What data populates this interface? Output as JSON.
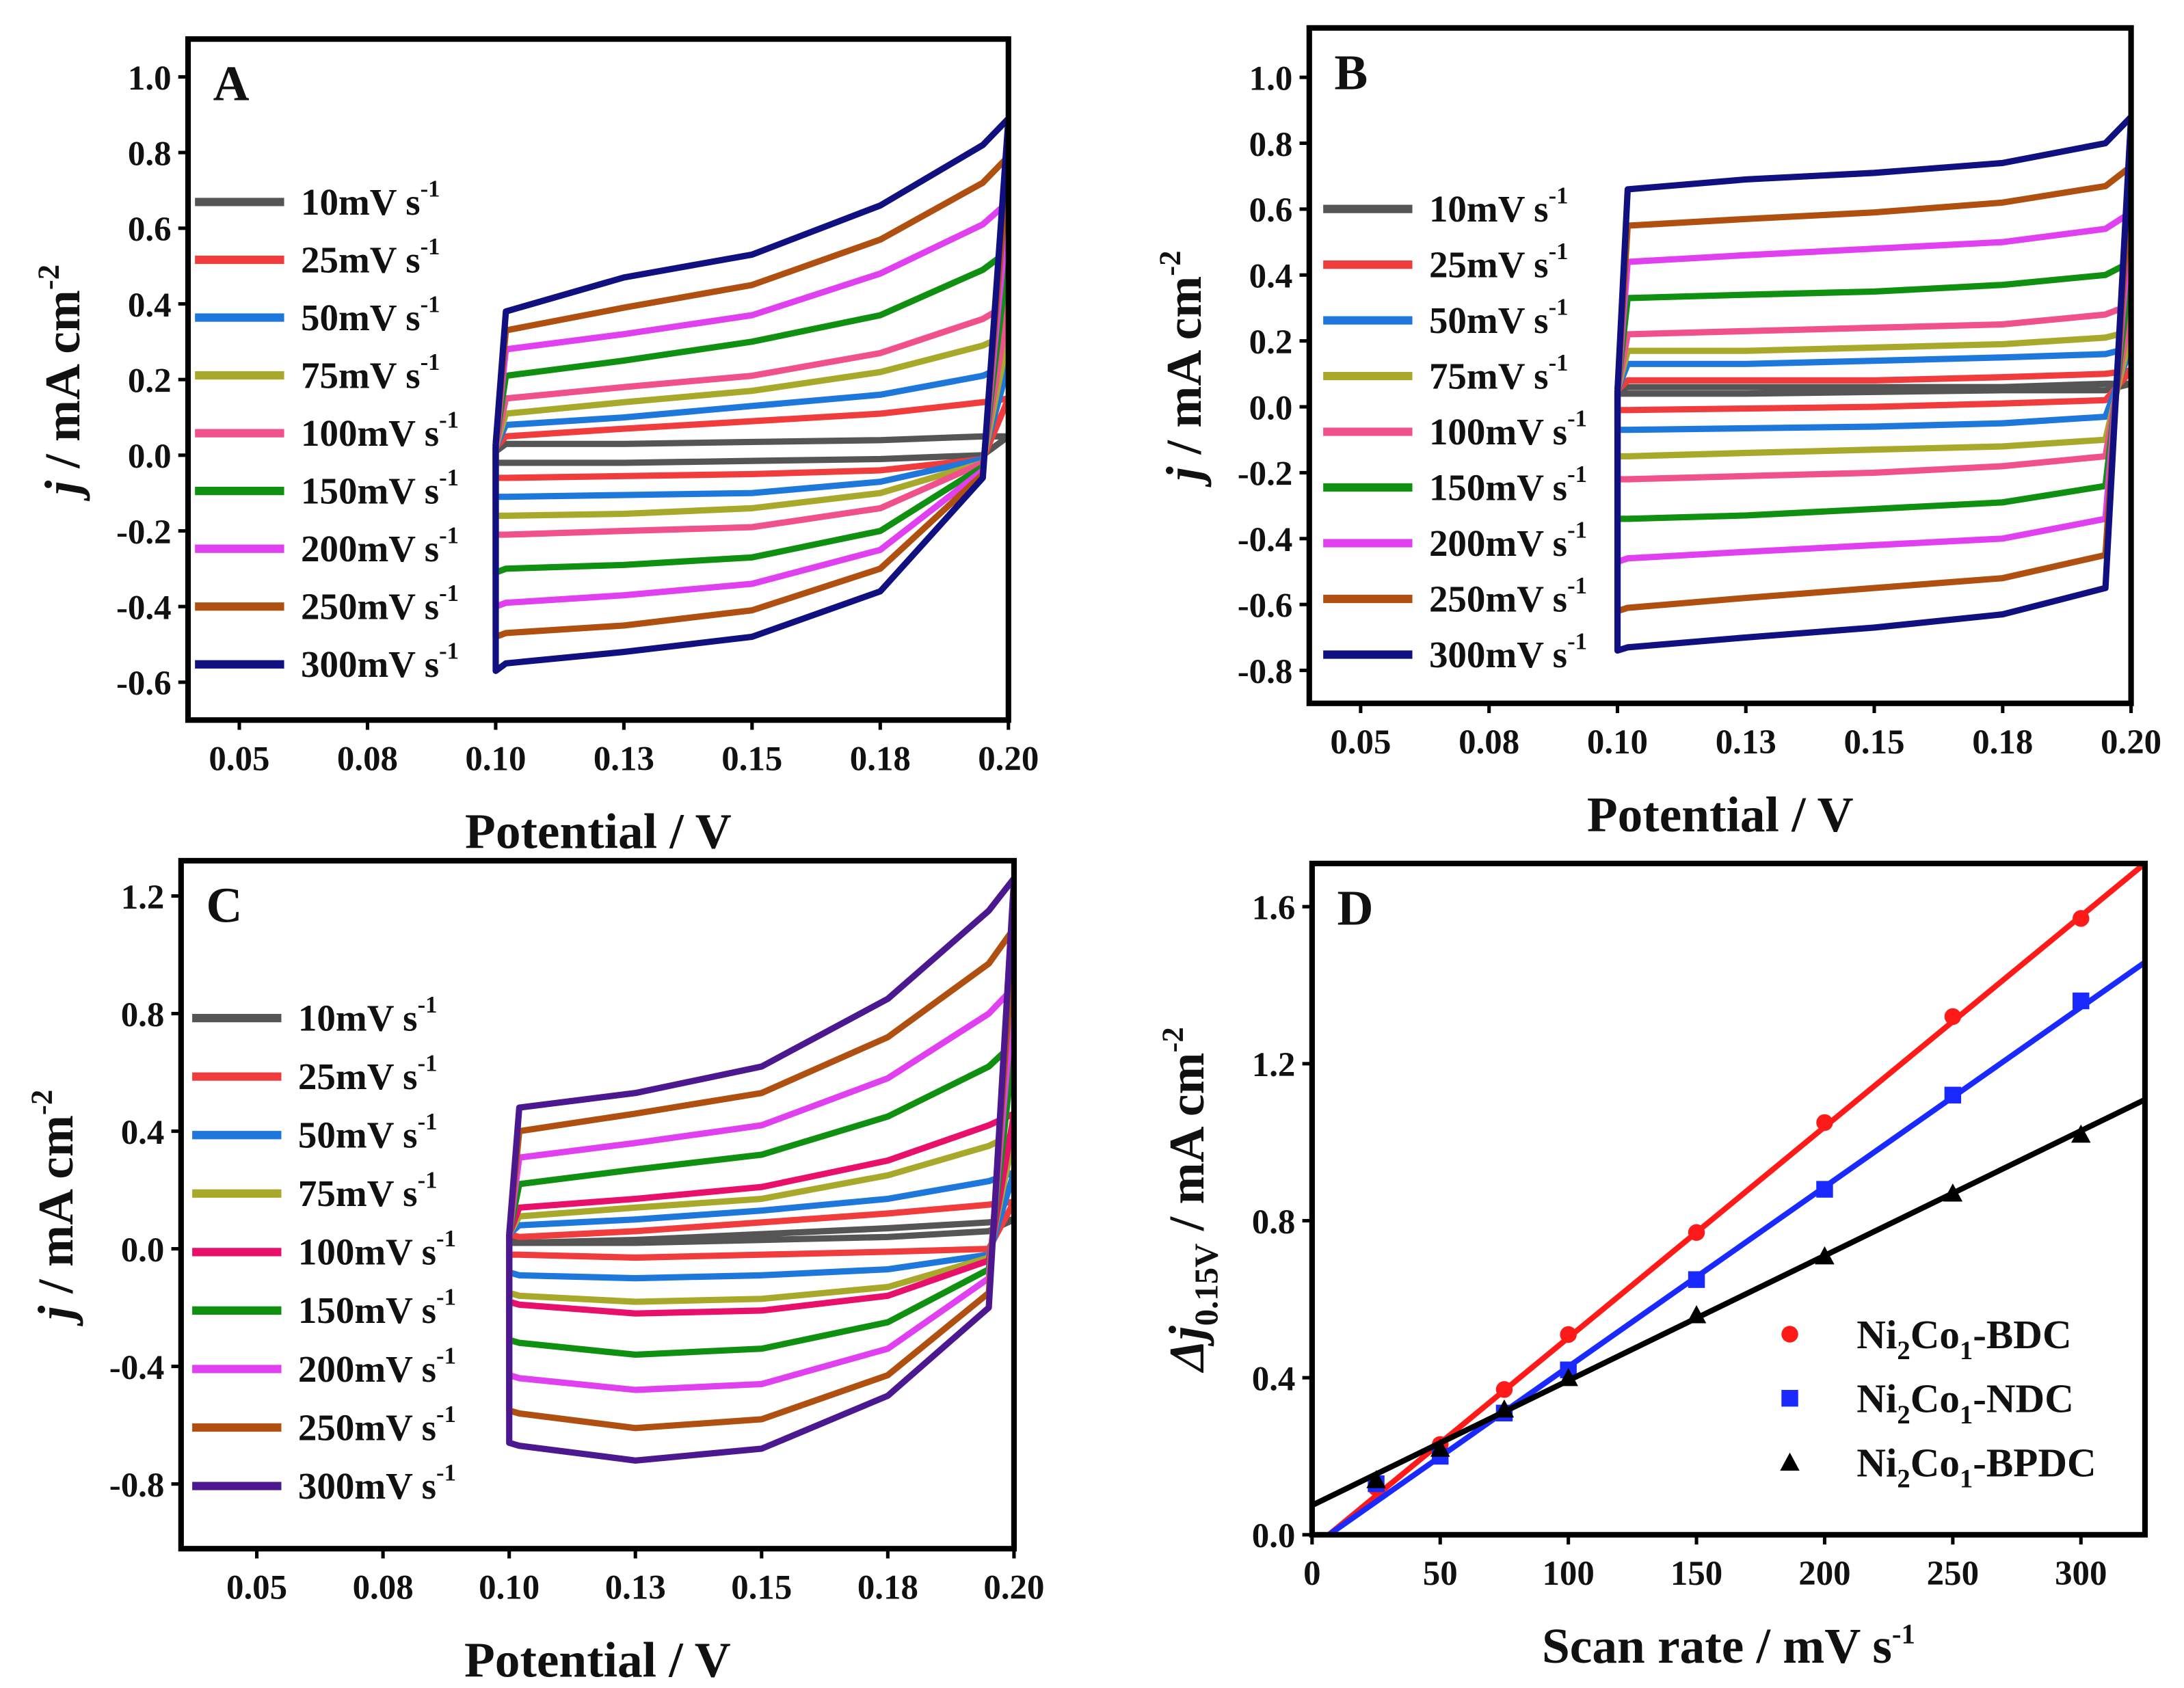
{
  "chart_data": [
    {
      "type": "line",
      "panel": "A",
      "xlabel": "Potential / V",
      "ylabel": {
        "italic": "j",
        "text": " / mA cm",
        "sup": "-2"
      },
      "xlim": [
        0.04,
        0.2
      ],
      "ylim": [
        -0.7,
        1.1
      ],
      "xticks": [
        0.05,
        0.075,
        0.1,
        0.125,
        0.15,
        0.175,
        0.2
      ],
      "xtick_labels": [
        "0.05",
        "0.08",
        "0.10",
        "0.13",
        "0.15",
        "0.18",
        "0.20"
      ],
      "yticks": [
        -0.6,
        -0.4,
        -0.2,
        0.0,
        0.2,
        0.4,
        0.6,
        0.8,
        1.0
      ],
      "ytick_labels": [
        "-0.6",
        "-0.4",
        "-0.2",
        "0.0",
        "0.2",
        "0.4",
        "0.6",
        "0.8",
        "1.0"
      ],
      "legend_position": "left",
      "x_grid": [
        0.1,
        0.102,
        0.125,
        0.15,
        0.175,
        0.195,
        0.2
      ],
      "series": [
        {
          "name": "10mV s",
          "sup": "-1",
          "color": "#555555",
          "upper": [
            0.01,
            0.03,
            0.03,
            0.035,
            0.04,
            0.05,
            0.05
          ],
          "lower": [
            -0.02,
            -0.02,
            -0.02,
            -0.015,
            -0.01,
            0.0,
            0.05
          ]
        },
        {
          "name": "25mV s",
          "sup": "-1",
          "color": "#f03c3c",
          "upper": [
            0.02,
            0.05,
            0.07,
            0.09,
            0.11,
            0.14,
            0.15
          ],
          "lower": [
            -0.06,
            -0.06,
            -0.055,
            -0.05,
            -0.04,
            -0.01,
            0.15
          ]
        },
        {
          "name": "50mV s",
          "sup": "-1",
          "color": "#1e78dc",
          "upper": [
            0.02,
            0.08,
            0.1,
            0.13,
            0.16,
            0.21,
            0.24
          ],
          "lower": [
            -0.11,
            -0.11,
            -0.105,
            -0.1,
            -0.07,
            -0.01,
            0.24
          ]
        },
        {
          "name": "75mV s",
          "sup": "-1",
          "color": "#a8a82a",
          "upper": [
            0.02,
            0.11,
            0.14,
            0.17,
            0.22,
            0.29,
            0.32
          ],
          "lower": [
            -0.16,
            -0.16,
            -0.155,
            -0.14,
            -0.1,
            -0.02,
            0.32
          ]
        },
        {
          "name": "100mV s",
          "sup": "-1",
          "color": "#f0508c",
          "upper": [
            0.02,
            0.15,
            0.18,
            0.21,
            0.27,
            0.36,
            0.4
          ],
          "lower": [
            -0.21,
            -0.21,
            -0.2,
            -0.19,
            -0.14,
            -0.02,
            0.4
          ]
        },
        {
          "name": "150mV s",
          "sup": "-1",
          "color": "#109010",
          "upper": [
            0.03,
            0.21,
            0.25,
            0.3,
            0.37,
            0.49,
            0.54
          ],
          "lower": [
            -0.31,
            -0.3,
            -0.29,
            -0.27,
            -0.2,
            -0.03,
            0.54
          ]
        },
        {
          "name": "200mV s",
          "sup": "-1",
          "color": "#e040f0",
          "upper": [
            0.03,
            0.28,
            0.32,
            0.37,
            0.48,
            0.61,
            0.67
          ],
          "lower": [
            -0.4,
            -0.39,
            -0.37,
            -0.34,
            -0.25,
            -0.04,
            0.67
          ]
        },
        {
          "name": "250mV s",
          "sup": "-1",
          "color": "#b05010",
          "upper": [
            0.03,
            0.33,
            0.39,
            0.45,
            0.57,
            0.72,
            0.79
          ],
          "lower": [
            -0.48,
            -0.47,
            -0.45,
            -0.41,
            -0.3,
            -0.05,
            0.79
          ]
        },
        {
          "name": "300mV s",
          "sup": "-1",
          "color": "#101080",
          "upper": [
            0.03,
            0.38,
            0.47,
            0.53,
            0.66,
            0.82,
            0.89
          ],
          "lower": [
            -0.57,
            -0.55,
            -0.52,
            -0.48,
            -0.36,
            -0.06,
            0.89
          ]
        }
      ]
    },
    {
      "type": "line",
      "panel": "B",
      "xlabel": "Potential / V",
      "ylabel": {
        "italic": "j",
        "text": " / mA cm",
        "sup": "-2"
      },
      "xlim": [
        0.04,
        0.2
      ],
      "ylim": [
        -0.9,
        1.15
      ],
      "xticks": [
        0.05,
        0.075,
        0.1,
        0.125,
        0.15,
        0.175,
        0.2
      ],
      "xtick_labels": [
        "0.05",
        "0.08",
        "0.10",
        "0.13",
        "0.15",
        "0.18",
        "0.20"
      ],
      "yticks": [
        -0.8,
        -0.6,
        -0.4,
        -0.2,
        0.0,
        0.2,
        0.4,
        0.6,
        0.8,
        1.0
      ],
      "ytick_labels": [
        "-0.8",
        "-0.6",
        "-0.4",
        "-0.2",
        "0.0",
        "0.2",
        "0.4",
        "0.6",
        "0.8",
        "1.0"
      ],
      "legend_position": "left",
      "x_grid": [
        0.1,
        0.102,
        0.125,
        0.15,
        0.175,
        0.195,
        0.2
      ],
      "series": [
        {
          "name": "10mV s",
          "sup": "-1",
          "color": "#555555",
          "upper": [
            0.05,
            0.06,
            0.06,
            0.06,
            0.06,
            0.07,
            0.07
          ],
          "lower": [
            0.04,
            0.04,
            0.04,
            0.045,
            0.05,
            0.05,
            0.07
          ]
        },
        {
          "name": "25mV s",
          "sup": "-1",
          "color": "#f03c3c",
          "upper": [
            0.05,
            0.08,
            0.08,
            0.08,
            0.09,
            0.1,
            0.11
          ],
          "lower": [
            -0.01,
            -0.01,
            -0.005,
            0.0,
            0.01,
            0.02,
            0.11
          ]
        },
        {
          "name": "50mV s",
          "sup": "-1",
          "color": "#1e78dc",
          "upper": [
            0.05,
            0.13,
            0.13,
            0.14,
            0.15,
            0.16,
            0.18
          ],
          "lower": [
            -0.07,
            -0.07,
            -0.065,
            -0.06,
            -0.05,
            -0.03,
            0.18
          ]
        },
        {
          "name": "75mV s",
          "sup": "-1",
          "color": "#a8a82a",
          "upper": [
            0.05,
            0.17,
            0.17,
            0.18,
            0.19,
            0.21,
            0.23
          ],
          "lower": [
            -0.15,
            -0.15,
            -0.14,
            -0.13,
            -0.12,
            -0.1,
            0.23
          ]
        },
        {
          "name": "100mV s",
          "sup": "-1",
          "color": "#f0508c",
          "upper": [
            0.05,
            0.22,
            0.23,
            0.24,
            0.25,
            0.28,
            0.31
          ],
          "lower": [
            -0.22,
            -0.22,
            -0.21,
            -0.2,
            -0.18,
            -0.15,
            0.31
          ]
        },
        {
          "name": "150mV s",
          "sup": "-1",
          "color": "#109010",
          "upper": [
            0.05,
            0.33,
            0.34,
            0.35,
            0.37,
            0.4,
            0.44
          ],
          "lower": [
            -0.34,
            -0.34,
            -0.33,
            -0.31,
            -0.29,
            -0.24,
            0.44
          ]
        },
        {
          "name": "200mV s",
          "sup": "-1",
          "color": "#e040f0",
          "upper": [
            0.05,
            0.44,
            0.46,
            0.48,
            0.5,
            0.54,
            0.59
          ],
          "lower": [
            -0.47,
            -0.46,
            -0.44,
            -0.42,
            -0.4,
            -0.34,
            0.59
          ]
        },
        {
          "name": "250mV s",
          "sup": "-1",
          "color": "#b05010",
          "upper": [
            0.05,
            0.55,
            0.57,
            0.59,
            0.62,
            0.67,
            0.73
          ],
          "lower": [
            -0.62,
            -0.61,
            -0.58,
            -0.55,
            -0.52,
            -0.45,
            0.73
          ]
        },
        {
          "name": "300mV s",
          "sup": "-1",
          "color": "#101080",
          "upper": [
            0.05,
            0.66,
            0.69,
            0.71,
            0.74,
            0.8,
            0.88
          ],
          "lower": [
            -0.74,
            -0.73,
            -0.7,
            -0.67,
            -0.63,
            -0.55,
            0.88
          ]
        }
      ]
    },
    {
      "type": "line",
      "panel": "C",
      "xlabel": "Potential / V",
      "ylabel": {
        "italic": "j",
        "text": " / mA cm",
        "sup": "-2"
      },
      "xlim": [
        0.035,
        0.2
      ],
      "ylim": [
        -1.02,
        1.32
      ],
      "xticks": [
        0.05,
        0.075,
        0.1,
        0.125,
        0.15,
        0.175,
        0.2
      ],
      "xtick_labels": [
        "0.05",
        "0.08",
        "0.10",
        "0.13",
        "0.15",
        "0.18",
        "0.20"
      ],
      "yticks": [
        -0.8,
        -0.4,
        0.0,
        0.4,
        0.8,
        1.2
      ],
      "ytick_labels": [
        "-0.8",
        "-0.4",
        "0.0",
        "0.4",
        "0.8",
        "1.2"
      ],
      "legend_position": "left",
      "x_grid": [
        0.1,
        0.102,
        0.125,
        0.15,
        0.175,
        0.195,
        0.2
      ],
      "series": [
        {
          "name": "10mV s",
          "sup": "-1",
          "color": "#555555",
          "upper": [
            0.03,
            0.02,
            0.03,
            0.05,
            0.07,
            0.09,
            0.1
          ],
          "lower": [
            0.02,
            0.02,
            0.02,
            0.03,
            0.04,
            0.06,
            0.1
          ]
        },
        {
          "name": "25mV s",
          "sup": "-1",
          "color": "#f03c3c",
          "upper": [
            0.05,
            0.04,
            0.06,
            0.09,
            0.12,
            0.15,
            0.16
          ],
          "lower": [
            -0.02,
            -0.02,
            -0.03,
            -0.02,
            -0.01,
            0.0,
            0.16
          ]
        },
        {
          "name": "50mV s",
          "sup": "-1",
          "color": "#1e78dc",
          "upper": [
            0.05,
            0.08,
            0.1,
            0.13,
            0.17,
            0.23,
            0.26
          ],
          "lower": [
            -0.08,
            -0.09,
            -0.1,
            -0.09,
            -0.07,
            -0.02,
            0.26
          ]
        },
        {
          "name": "75mV s",
          "sup": "-1",
          "color": "#a8a82a",
          "upper": [
            0.05,
            0.11,
            0.14,
            0.17,
            0.25,
            0.35,
            0.39
          ],
          "lower": [
            -0.15,
            -0.16,
            -0.18,
            -0.17,
            -0.13,
            -0.03,
            0.39
          ]
        },
        {
          "name": "100mV s",
          "sup": "-1",
          "color": "#e8106a",
          "upper": [
            0.05,
            0.14,
            0.17,
            0.21,
            0.3,
            0.42,
            0.46
          ],
          "lower": [
            -0.18,
            -0.19,
            -0.22,
            -0.21,
            -0.16,
            -0.04,
            0.46
          ]
        },
        {
          "name": "150mV s",
          "sup": "-1",
          "color": "#109010",
          "upper": [
            0.05,
            0.22,
            0.27,
            0.32,
            0.45,
            0.62,
            0.7
          ],
          "lower": [
            -0.31,
            -0.32,
            -0.36,
            -0.34,
            -0.25,
            -0.07,
            0.7
          ]
        },
        {
          "name": "200mV s",
          "sup": "-1",
          "color": "#e040f0",
          "upper": [
            0.05,
            0.31,
            0.36,
            0.42,
            0.58,
            0.8,
            0.89
          ],
          "lower": [
            -0.43,
            -0.44,
            -0.48,
            -0.46,
            -0.34,
            -0.1,
            0.89
          ]
        },
        {
          "name": "250mV s",
          "sup": "-1",
          "color": "#b05010",
          "upper": [
            0.05,
            0.4,
            0.46,
            0.53,
            0.72,
            0.97,
            1.09
          ],
          "lower": [
            -0.55,
            -0.56,
            -0.61,
            -0.58,
            -0.43,
            -0.15,
            1.09
          ]
        },
        {
          "name": "300mV s",
          "sup": "-1",
          "color": "#4b1890",
          "upper": [
            0.05,
            0.48,
            0.53,
            0.62,
            0.85,
            1.15,
            1.26
          ],
          "lower": [
            -0.66,
            -0.67,
            -0.72,
            -0.68,
            -0.5,
            -0.2,
            1.26
          ]
        }
      ]
    },
    {
      "type": "scatter",
      "panel": "D",
      "xlabel": {
        "text": "Scan rate / mV s",
        "sup": "-1"
      },
      "ylabel": {
        "italic": "Δj",
        "sub": "0.15V",
        "text": " / mA cm",
        "sup": "-2"
      },
      "xlim": [
        0,
        325
      ],
      "ylim": [
        0,
        1.71
      ],
      "xticks": [
        0,
        50,
        100,
        150,
        200,
        250,
        300
      ],
      "xtick_labels": [
        "0",
        "50",
        "100",
        "150",
        "200",
        "250",
        "300"
      ],
      "yticks": [
        0.0,
        0.4,
        0.8,
        1.2,
        1.6
      ],
      "ytick_labels": [
        "0.0",
        "0.4",
        "0.8",
        "1.2",
        "1.6"
      ],
      "legend_position": "bottom-right",
      "x": [
        25,
        50,
        75,
        100,
        150,
        200,
        250,
        300
      ],
      "series": [
        {
          "name": "Ni",
          "sub1": "2",
          "mid": "Co",
          "sub2": "1",
          "suffix": "-BDC",
          "color": "#ff1a1a",
          "marker": "circle",
          "values": [
            0.12,
            0.23,
            0.37,
            0.51,
            0.77,
            1.05,
            1.32,
            1.57
          ],
          "fit": {
            "slope": 0.00537,
            "intercept": -0.035
          }
        },
        {
          "name": "Ni",
          "sub1": "2",
          "mid": "Co",
          "sub2": "1",
          "suffix": "-NDC",
          "color": "#1a2aff",
          "marker": "square",
          "values": [
            0.13,
            0.2,
            0.31,
            0.42,
            0.65,
            0.88,
            1.12,
            1.36
          ],
          "fit": {
            "slope": 0.00458,
            "intercept": -0.03
          }
        },
        {
          "name": "Ni",
          "sub1": "2",
          "mid": "Co",
          "sub2": "1",
          "suffix": "-BPDC",
          "color": "#000000",
          "marker": "triangle",
          "values": [
            0.14,
            0.22,
            0.32,
            0.4,
            0.56,
            0.71,
            0.87,
            1.02
          ],
          "fit": {
            "slope": 0.00318,
            "intercept": 0.075
          }
        }
      ]
    }
  ],
  "panel_labels": [
    "A",
    "B",
    "C",
    "D"
  ]
}
